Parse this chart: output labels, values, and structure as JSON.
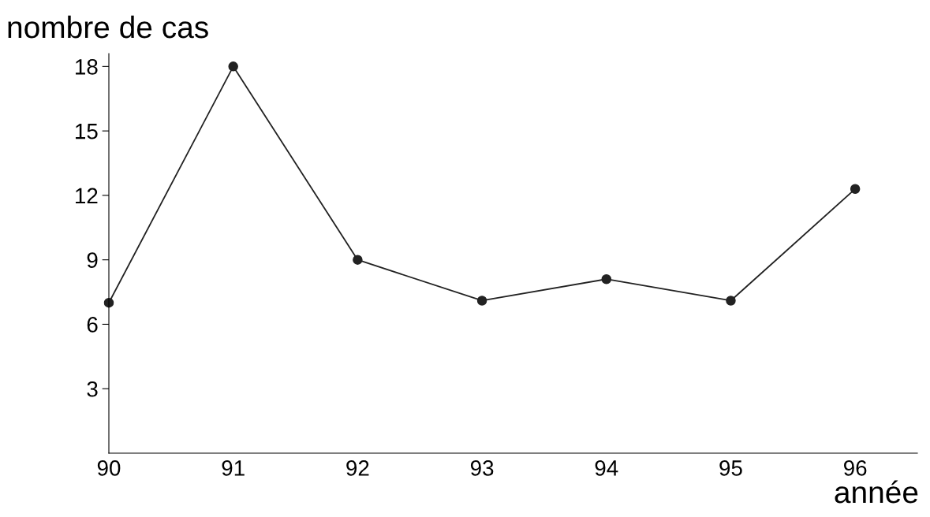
{
  "chart_data": {
    "type": "line",
    "xlabel": "année",
    "ylabel": "nombre de cas",
    "x": [
      90,
      91,
      92,
      93,
      94,
      95,
      96
    ],
    "series": [
      {
        "color": "#222222",
        "values": [
          7.0,
          18.0,
          9.0,
          7.1,
          8.1,
          7.1,
          12.3
        ]
      }
    ],
    "xlim": [
      90,
      96.5
    ],
    "xticks": [
      90,
      91,
      92,
      93,
      94,
      95,
      96
    ],
    "ylim": [
      0,
      18.6
    ],
    "yticks": [
      3,
      6,
      9,
      12,
      15,
      18
    ],
    "grid": false,
    "legend": false,
    "marker": "circle",
    "line_style": "solid"
  }
}
